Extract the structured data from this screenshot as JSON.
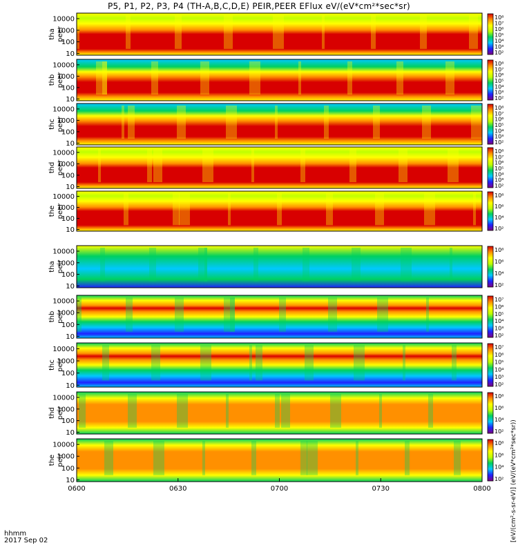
{
  "title": "P5, P1, P2, P3, P4 (TH-A,B,C,D,E) PEIR,PEER EFlux eV/(eV*cm²*sec*sr)",
  "footer": {
    "time_label": "hhmm",
    "date_label": "2017 Sep 02"
  },
  "colorbar_title": "[eV/(cm²-s-sr-eV)] (eV/(eV*cm²*sec*sr))",
  "chart_data": {
    "type": "heatmap",
    "x_ticks": [
      "0600",
      "0630",
      "0700",
      "0730",
      "0800"
    ],
    "x_range": [
      "06:00",
      "08:00"
    ],
    "y_scale": "log",
    "y_range_eV": [
      7,
      30000
    ],
    "colormap": [
      "#7f007f",
      "#2020ff",
      "#00c8ff",
      "#00d060",
      "#c0ff00",
      "#ffff00",
      "#ff9000",
      "#d80000"
    ],
    "panels": [
      {
        "label": [
          "tha",
          "peer"
        ],
        "yticks": [
          "10000",
          "1000",
          "100",
          "10"
        ],
        "zticks": [
          "10⁸",
          "10⁷",
          "10⁶",
          "10⁵",
          "10⁴",
          "10³",
          "10²"
        ]
      },
      {
        "label": [
          "thb",
          "peer"
        ],
        "yticks": [
          "10000",
          "1000",
          "100",
          "10"
        ],
        "zticks": [
          "10⁸",
          "10⁷",
          "10⁶",
          "10⁵",
          "10⁴",
          "10³",
          "10²"
        ]
      },
      {
        "label": [
          "thc",
          "peer"
        ],
        "yticks": [
          "10000",
          "1000",
          "100",
          "10"
        ],
        "zticks": [
          "10⁸",
          "10⁷",
          "10⁶",
          "10⁵",
          "10⁴",
          "10³",
          "10²"
        ]
      },
      {
        "label": [
          "thd",
          "peer"
        ],
        "yticks": [
          "10000",
          "1000",
          "100",
          "10"
        ],
        "zticks": [
          "10⁸",
          "10⁷",
          "10⁶",
          "10⁵",
          "10⁴",
          "10³",
          "10²"
        ]
      },
      {
        "label": [
          "the",
          "peer"
        ],
        "yticks": [
          "10000",
          "1000",
          "100",
          "10"
        ],
        "zticks": [
          "10⁸",
          "10⁶",
          "10⁴",
          "10²"
        ]
      },
      {
        "label": [
          "tha",
          "peir"
        ],
        "yticks": [
          "10000",
          "1000",
          "100",
          "10"
        ],
        "zticks": [
          "10⁸",
          "10⁶",
          "10⁴",
          "10²"
        ]
      },
      {
        "label": [
          "thb",
          "peir"
        ],
        "yticks": [
          "10000",
          "1000",
          "100",
          "10"
        ],
        "zticks": [
          "10⁷",
          "10⁶",
          "10⁵",
          "10⁴",
          "10³",
          "10²"
        ]
      },
      {
        "label": [
          "thc",
          "peir"
        ],
        "yticks": [
          "10000",
          "1000",
          "100",
          "10"
        ],
        "zticks": [
          "10⁷",
          "10⁶",
          "10⁵",
          "10⁴",
          "10³",
          "10²"
        ]
      },
      {
        "label": [
          "thd",
          "peir"
        ],
        "yticks": [
          "10000",
          "1000",
          "100",
          "10"
        ],
        "zticks": [
          "10⁸",
          "10⁶",
          "10⁴",
          "10²"
        ]
      },
      {
        "label": [
          "the",
          "peir"
        ],
        "yticks": [
          "10000",
          "1000",
          "100",
          "10"
        ],
        "zticks": [
          "10⁸",
          "10⁶",
          "10⁴",
          "10²"
        ]
      }
    ]
  }
}
